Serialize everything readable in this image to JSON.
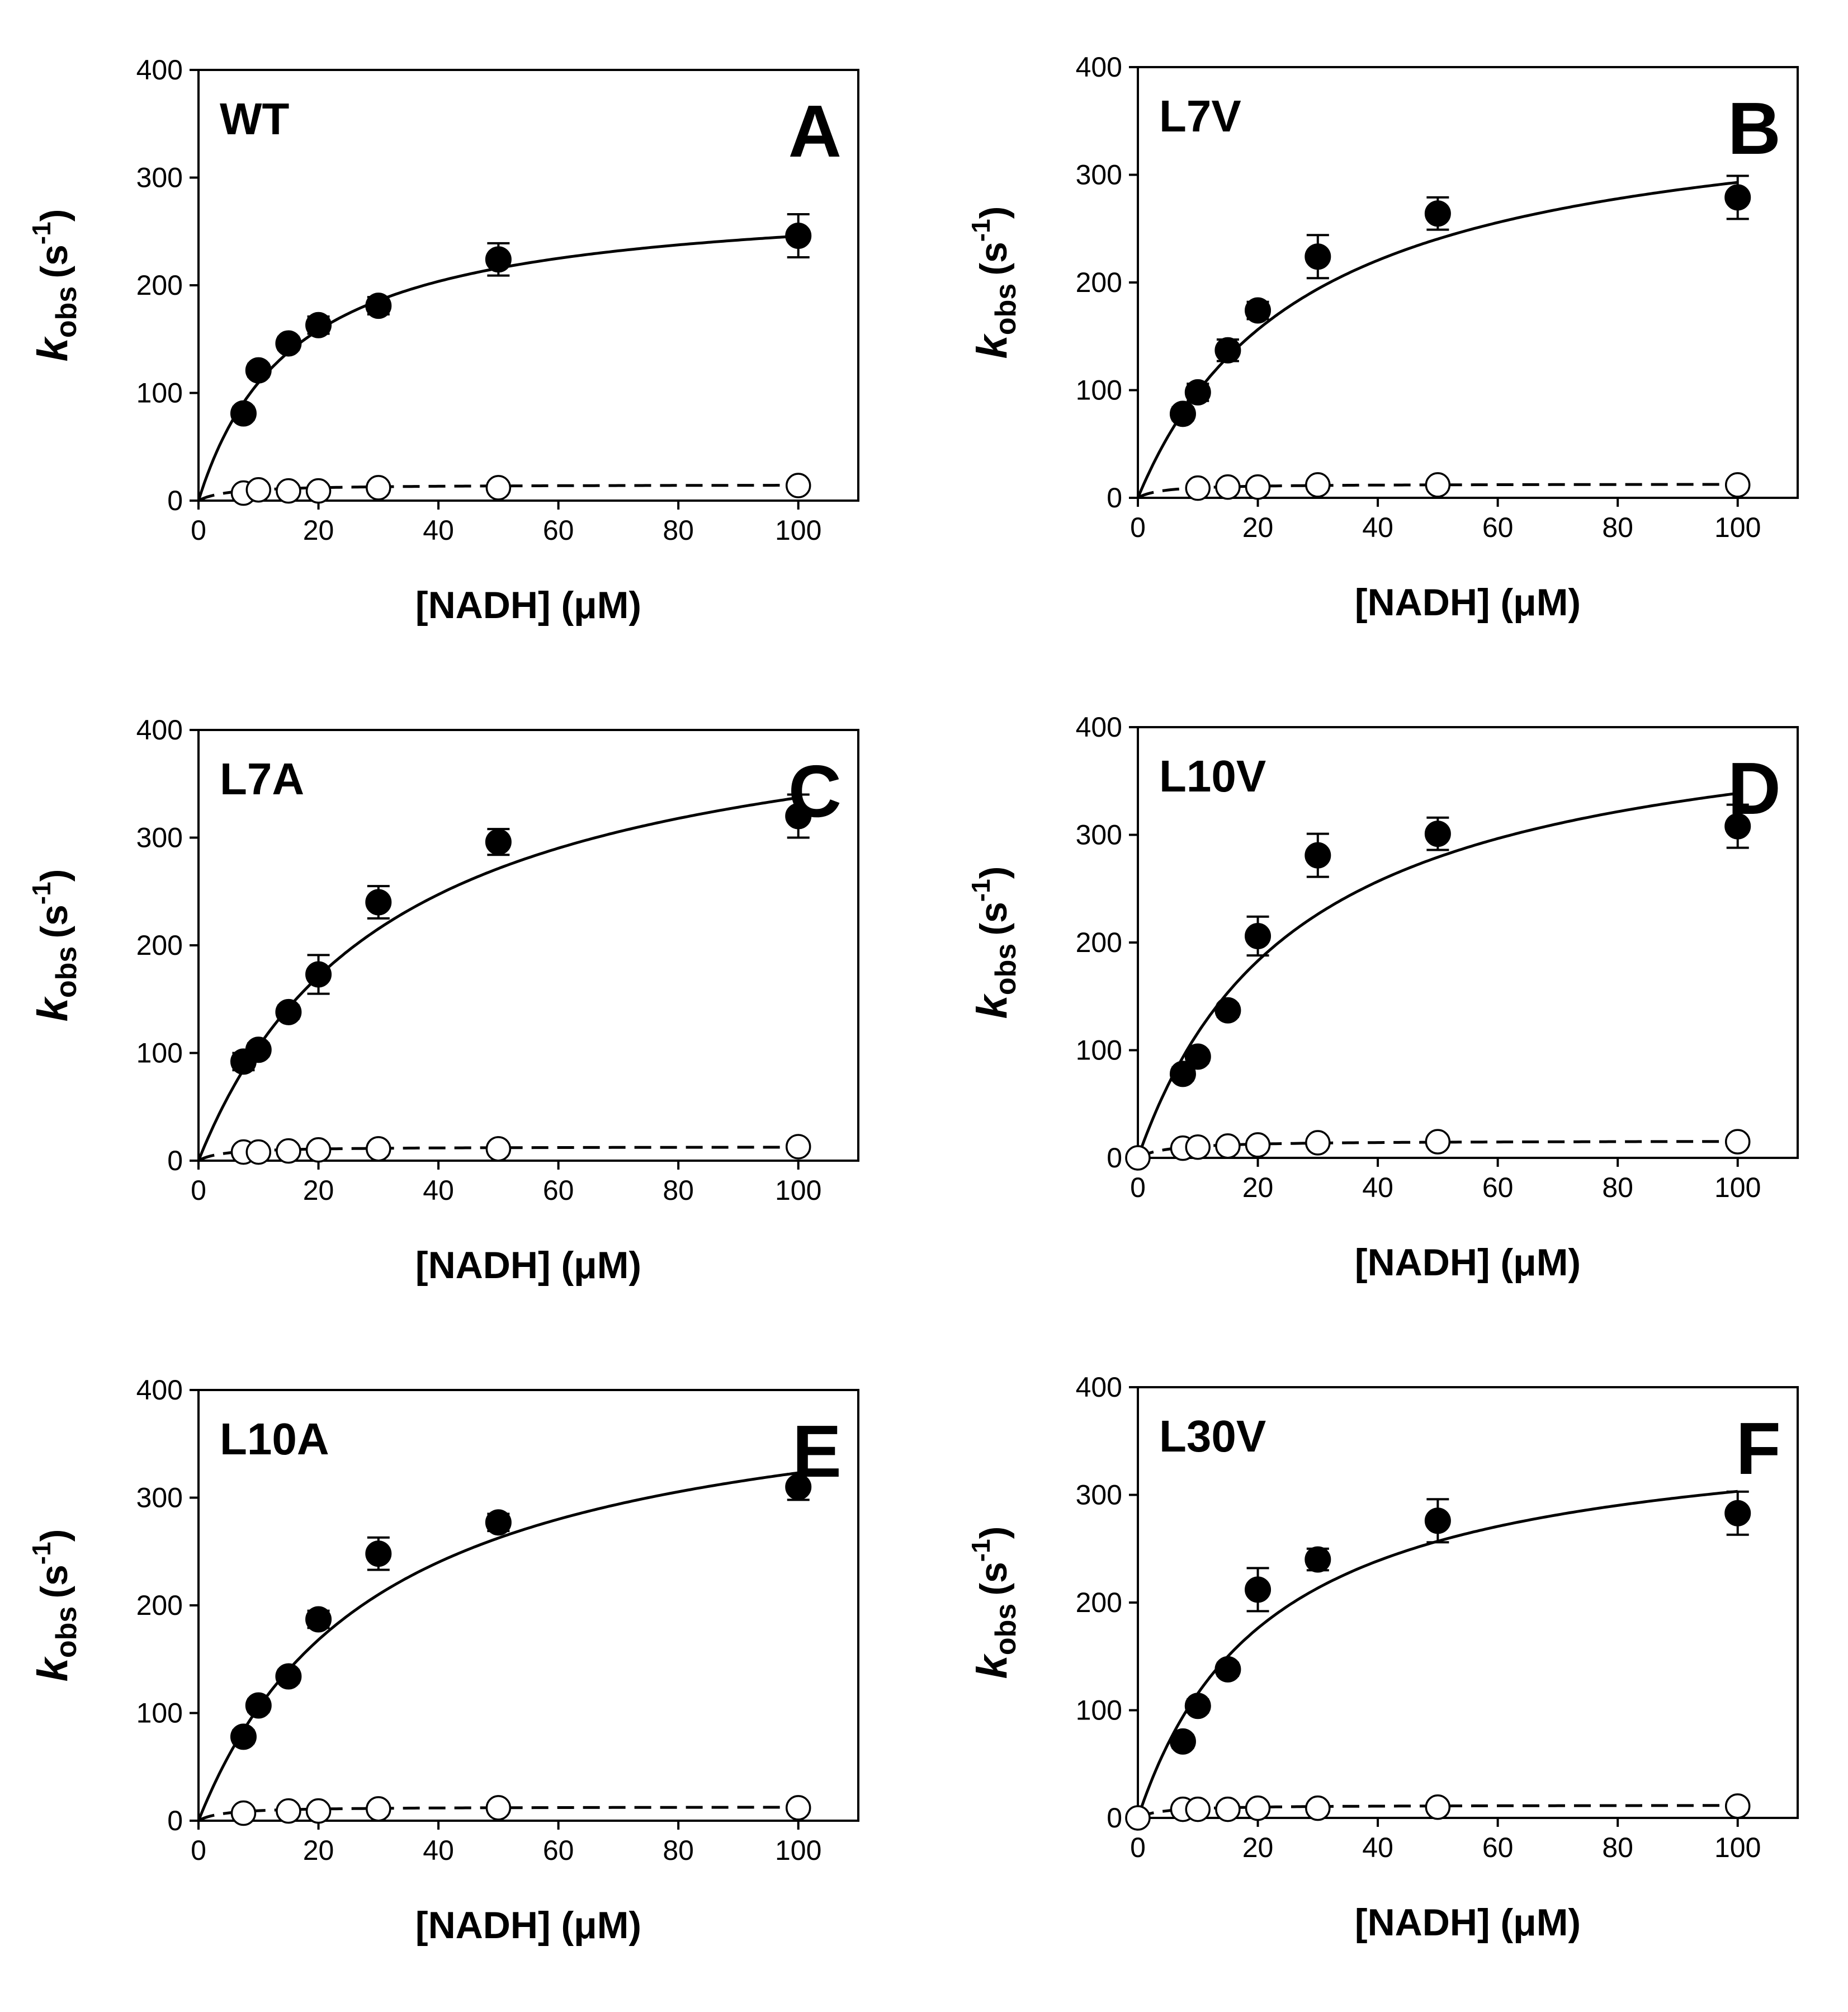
{
  "figure": {
    "description_text": "",
    "xlabel": "[NADH] (μM)",
    "ylabel_main": "k",
    "ylabel_sub": "obs",
    "ylabel_unit_open": "(s",
    "ylabel_unit_exp": "-1",
    "ylabel_unit_close": ")"
  },
  "chart_data": [
    {
      "type": "scatter",
      "panel_letter": "A",
      "title": "WT",
      "xlabel": "[NADH] (μM)",
      "ylabel": "kobs (s-1)",
      "xlim": [
        0,
        110
      ],
      "ylim": [
        0,
        400
      ],
      "xticks": [
        0,
        20,
        40,
        60,
        80,
        100
      ],
      "yticks": [
        0,
        100,
        200,
        300,
        400
      ],
      "grid": false,
      "series": [
        {
          "name": "filled",
          "marker": "filled-circle",
          "x": [
            7.5,
            10,
            15,
            20,
            30,
            50,
            100
          ],
          "y": [
            81,
            121,
            146,
            163,
            181,
            224,
            246
          ],
          "err": [
            6,
            6,
            6,
            8,
            8,
            15,
            20
          ]
        },
        {
          "name": "open",
          "marker": "open-circle",
          "x": [
            7.5,
            10,
            15,
            20,
            30,
            50,
            100
          ],
          "y": [
            7,
            10,
            9,
            9,
            12,
            12,
            14
          ],
          "err": [
            0,
            0,
            0,
            0,
            0,
            0,
            0
          ]
        }
      ],
      "fits": [
        {
          "name": "solid-fit",
          "style": "solid",
          "vmax": 285,
          "km": 16
        },
        {
          "name": "dashed-fit",
          "style": "dashed",
          "vmax": 15,
          "km": 5
        }
      ]
    },
    {
      "type": "scatter",
      "panel_letter": "B",
      "title": "L7V",
      "xlabel": "[NADH] (μM)",
      "ylabel": "kobs (s-1)",
      "xlim": [
        0,
        110
      ],
      "ylim": [
        0,
        400
      ],
      "xticks": [
        0,
        20,
        40,
        60,
        80,
        100
      ],
      "yticks": [
        0,
        100,
        200,
        300,
        400
      ],
      "grid": false,
      "series": [
        {
          "name": "filled",
          "marker": "filled-circle",
          "x": [
            7.5,
            10,
            15,
            20,
            30,
            50,
            100
          ],
          "y": [
            78,
            98,
            137,
            174,
            224,
            264,
            279
          ],
          "err": [
            6,
            8,
            10,
            8,
            20,
            15,
            20
          ]
        },
        {
          "name": "open",
          "marker": "open-circle",
          "x": [
            10,
            15,
            20,
            30,
            50,
            100
          ],
          "y": [
            9,
            10,
            10,
            12,
            12,
            12
          ],
          "err": [
            0,
            0,
            0,
            0,
            0,
            0
          ]
        }
      ],
      "fits": [
        {
          "name": "solid-fit",
          "style": "solid",
          "vmax": 375,
          "km": 28
        },
        {
          "name": "dashed-fit",
          "style": "dashed",
          "vmax": 13,
          "km": 4
        }
      ]
    },
    {
      "type": "scatter",
      "panel_letter": "C",
      "title": "L7A",
      "xlabel": "[NADH] (μM)",
      "ylabel": "kobs (s-1)",
      "xlim": [
        0,
        110
      ],
      "ylim": [
        0,
        400
      ],
      "xticks": [
        0,
        20,
        40,
        60,
        80,
        100
      ],
      "yticks": [
        0,
        100,
        200,
        300,
        400
      ],
      "grid": false,
      "series": [
        {
          "name": "filled",
          "marker": "filled-circle",
          "x": [
            7.5,
            10,
            15,
            20,
            30,
            50,
            100
          ],
          "y": [
            92,
            103,
            138,
            173,
            240,
            296,
            320
          ],
          "err": [
            8,
            6,
            6,
            18,
            15,
            12,
            20
          ]
        },
        {
          "name": "open",
          "marker": "open-circle",
          "x": [
            7.5,
            10,
            15,
            20,
            30,
            50,
            100
          ],
          "y": [
            8,
            8,
            9,
            10,
            11,
            11,
            13
          ],
          "err": [
            0,
            0,
            0,
            0,
            0,
            0,
            0
          ]
        }
      ],
      "fits": [
        {
          "name": "solid-fit",
          "style": "solid",
          "vmax": 445,
          "km": 32
        },
        {
          "name": "dashed-fit",
          "style": "dashed",
          "vmax": 13,
          "km": 4
        }
      ]
    },
    {
      "type": "scatter",
      "panel_letter": "D",
      "title": "L10V",
      "xlabel": "[NADH] (μM)",
      "ylabel": "kobs (s-1)",
      "xlim": [
        0,
        110
      ],
      "ylim": [
        0,
        400
      ],
      "xticks": [
        0,
        20,
        40,
        60,
        80,
        100
      ],
      "yticks": [
        0,
        100,
        200,
        300,
        400
      ],
      "grid": false,
      "series": [
        {
          "name": "filled",
          "marker": "filled-circle",
          "x": [
            7.5,
            10,
            15,
            20,
            30,
            50,
            100
          ],
          "y": [
            78,
            94,
            137,
            206,
            281,
            301,
            308
          ],
          "err": [
            6,
            6,
            6,
            18,
            20,
            15,
            20
          ]
        },
        {
          "name": "open",
          "marker": "open-circle",
          "x": [
            0,
            7.5,
            10,
            15,
            20,
            30,
            50,
            100
          ],
          "y": [
            0,
            9,
            10,
            11,
            12,
            14,
            15,
            15
          ],
          "err": [
            0,
            0,
            0,
            0,
            0,
            0,
            0,
            0
          ]
        }
      ],
      "fits": [
        {
          "name": "solid-fit",
          "style": "solid",
          "vmax": 430,
          "km": 27
        },
        {
          "name": "dashed-fit",
          "style": "dashed",
          "vmax": 16,
          "km": 5
        }
      ]
    },
    {
      "type": "scatter",
      "panel_letter": "E",
      "title": "L10A",
      "xlabel": "[NADH] (μM)",
      "ylabel": "kobs (s-1)",
      "xlim": [
        0,
        110
      ],
      "ylim": [
        0,
        400
      ],
      "xticks": [
        0,
        20,
        40,
        60,
        80,
        100
      ],
      "yticks": [
        0,
        100,
        200,
        300,
        400
      ],
      "grid": false,
      "series": [
        {
          "name": "filled",
          "marker": "filled-circle",
          "x": [
            7.5,
            10,
            15,
            20,
            30,
            50,
            100
          ],
          "y": [
            78,
            107,
            134,
            187,
            248,
            277,
            310
          ],
          "err": [
            6,
            6,
            6,
            8,
            15,
            8,
            12
          ]
        },
        {
          "name": "open",
          "marker": "open-circle",
          "x": [
            7.5,
            15,
            20,
            30,
            50,
            100
          ],
          "y": [
            7,
            9,
            9,
            11,
            12,
            12
          ],
          "err": [
            0,
            0,
            0,
            0,
            0,
            0
          ]
        }
      ],
      "fits": [
        {
          "name": "solid-fit",
          "style": "solid",
          "vmax": 420,
          "km": 30
        },
        {
          "name": "dashed-fit",
          "style": "dashed",
          "vmax": 13,
          "km": 4
        }
      ]
    },
    {
      "type": "scatter",
      "panel_letter": "F",
      "title": "L30V",
      "xlabel": "[NADH] (μM)",
      "ylabel": "kobs (s-1)",
      "xlim": [
        0,
        110
      ],
      "ylim": [
        0,
        400
      ],
      "xticks": [
        0,
        20,
        40,
        60,
        80,
        100
      ],
      "yticks": [
        0,
        100,
        200,
        300,
        400
      ],
      "grid": false,
      "series": [
        {
          "name": "filled",
          "marker": "filled-circle",
          "x": [
            7.5,
            10,
            15,
            20,
            30,
            50,
            100
          ],
          "y": [
            71,
            104,
            138,
            212,
            240,
            276,
            283
          ],
          "err": [
            6,
            6,
            6,
            20,
            10,
            20,
            20
          ]
        },
        {
          "name": "open",
          "marker": "open-circle",
          "x": [
            0,
            7.5,
            10,
            15,
            20,
            30,
            50,
            100
          ],
          "y": [
            0,
            8,
            8,
            8,
            9,
            9,
            10,
            11
          ],
          "err": [
            0,
            0,
            0,
            0,
            0,
            0,
            0,
            0
          ]
        }
      ],
      "fits": [
        {
          "name": "solid-fit",
          "style": "solid",
          "vmax": 370,
          "km": 22
        },
        {
          "name": "dashed-fit",
          "style": "dashed",
          "vmax": 12,
          "km": 4
        }
      ]
    }
  ]
}
